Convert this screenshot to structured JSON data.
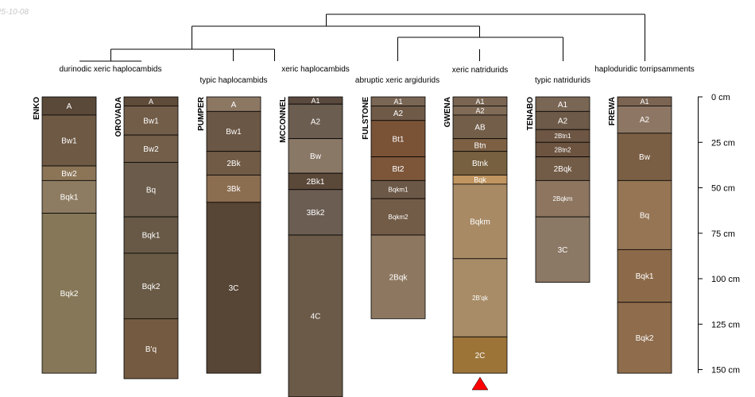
{
  "date_stamp": "25-10-08",
  "depth_axis": {
    "unit": "cm",
    "ticks": [
      {
        "depth": 0,
        "label": "0 cm"
      },
      {
        "depth": 25,
        "label": "25 cm"
      },
      {
        "depth": 50,
        "label": "50 cm"
      },
      {
        "depth": 75,
        "label": "75 cm"
      },
      {
        "depth": 100,
        "label": "100 cm"
      },
      {
        "depth": 125,
        "label": "125 cm"
      },
      {
        "depth": 150,
        "label": "150 cm"
      }
    ]
  },
  "taxa_labels": [
    "durinodic xeric haplocambids",
    "typic haplocambids",
    "xeric haplocambids",
    "abruptic xeric argidurids",
    "xeric natridurids",
    "typic natridurids",
    "haploduridic torripsamments"
  ],
  "profiles": [
    {
      "name": "ENKO",
      "horizons": [
        {
          "name": "A",
          "top": 0,
          "bottom": 10,
          "color": "#5a4938"
        },
        {
          "name": "Bw1",
          "top": 10,
          "bottom": 38,
          "color": "#6e5944"
        },
        {
          "name": "Bw2",
          "top": 38,
          "bottom": 46,
          "color": "#8c7557"
        },
        {
          "name": "Bqk1",
          "top": 46,
          "bottom": 64,
          "color": "#8e7c62"
        },
        {
          "name": "Bqk2",
          "top": 64,
          "bottom": 152,
          "color": "#857758"
        }
      ]
    },
    {
      "name": "OROVADA",
      "horizons": [
        {
          "name": "A",
          "top": 0,
          "bottom": 5,
          "color": "#5f4b3a"
        },
        {
          "name": "Bw1",
          "top": 5,
          "bottom": 21,
          "color": "#725d49"
        },
        {
          "name": "Bw2",
          "top": 21,
          "bottom": 36,
          "color": "#725e49"
        },
        {
          "name": "Bq",
          "top": 36,
          "bottom": 66,
          "color": "#6a5b4a"
        },
        {
          "name": "Bqk1",
          "top": 66,
          "bottom": 86,
          "color": "#675946"
        },
        {
          "name": "Bqk2",
          "top": 86,
          "bottom": 122,
          "color": "#695a46"
        },
        {
          "name": "B'q",
          "top": 122,
          "bottom": 155,
          "color": "#745a40"
        }
      ]
    },
    {
      "name": "PUMPER",
      "horizons": [
        {
          "name": "A",
          "top": 0,
          "bottom": 8,
          "color": "#8c7763"
        },
        {
          "name": "Bw1",
          "top": 8,
          "bottom": 30,
          "color": "#6b5745"
        },
        {
          "name": "2Bk",
          "top": 30,
          "bottom": 43,
          "color": "#715b46"
        },
        {
          "name": "3Bk",
          "top": 43,
          "bottom": 58,
          "color": "#8b6d50"
        },
        {
          "name": "3C",
          "top": 58,
          "bottom": 152,
          "color": "#574535"
        }
      ]
    },
    {
      "name": "MCCONNEL",
      "horizons": [
        {
          "name": "A1",
          "top": 0,
          "bottom": 4,
          "color": "#5a4a3e"
        },
        {
          "name": "A2",
          "top": 4,
          "bottom": 23,
          "color": "#6b5d50"
        },
        {
          "name": "Bw",
          "top": 23,
          "bottom": 42,
          "color": "#8a7867"
        },
        {
          "name": "2Bk1",
          "top": 42,
          "bottom": 51,
          "color": "#5a4838"
        },
        {
          "name": "3Bk2",
          "top": 51,
          "bottom": 76,
          "color": "#6b5d52"
        },
        {
          "name": "4C",
          "top": 76,
          "bottom": 165,
          "color": "#6b5a48"
        }
      ]
    },
    {
      "name": "FULSTONE",
      "horizons": [
        {
          "name": "A1",
          "top": 0,
          "bottom": 5,
          "color": "#7a6654"
        },
        {
          "name": "A2",
          "top": 5,
          "bottom": 13,
          "color": "#6f5a48"
        },
        {
          "name": "Bt1",
          "top": 13,
          "bottom": 33,
          "color": "#7a5236"
        },
        {
          "name": "Bt2",
          "top": 33,
          "bottom": 46,
          "color": "#7d563a"
        },
        {
          "name": "Bqkm1",
          "top": 46,
          "bottom": 56,
          "color": "#6c5846"
        },
        {
          "name": "Bqkm2",
          "top": 56,
          "bottom": 76,
          "color": "#735c47"
        },
        {
          "name": "2Bqk",
          "top": 76,
          "bottom": 122,
          "color": "#8e7760"
        }
      ]
    },
    {
      "name": "GWENA",
      "horizons": [
        {
          "name": "A1",
          "top": 0,
          "bottom": 5,
          "color": "#7a6552"
        },
        {
          "name": "A2",
          "top": 5,
          "bottom": 10,
          "color": "#806b57"
        },
        {
          "name": "AB",
          "top": 10,
          "bottom": 23,
          "color": "#735e49"
        },
        {
          "name": "Btn",
          "top": 23,
          "bottom": 30,
          "color": "#7d6044"
        },
        {
          "name": "Btnk",
          "top": 30,
          "bottom": 43,
          "color": "#76603f"
        },
        {
          "name": "Bqk",
          "top": 43,
          "bottom": 48,
          "color": "#c0955f"
        },
        {
          "name": "Bqkm",
          "top": 48,
          "bottom": 89,
          "color": "#a88a65"
        },
        {
          "name": "2B'qk",
          "top": 89,
          "bottom": 132,
          "color": "#a88c67"
        },
        {
          "name": "2C",
          "top": 132,
          "bottom": 152,
          "color": "#9c7438"
        }
      ]
    },
    {
      "name": "TENABO",
      "horizons": [
        {
          "name": "A1",
          "top": 0,
          "bottom": 8,
          "color": "#7a6654"
        },
        {
          "name": "A2",
          "top": 8,
          "bottom": 18,
          "color": "#6d5a48"
        },
        {
          "name": "2Btn1",
          "top": 18,
          "bottom": 25,
          "color": "#6d5643"
        },
        {
          "name": "2Btn2",
          "top": 25,
          "bottom": 33,
          "color": "#6c5441"
        },
        {
          "name": "2Bqk",
          "top": 33,
          "bottom": 46,
          "color": "#725c47"
        },
        {
          "name": "2Bqkm",
          "top": 46,
          "bottom": 66,
          "color": "#8d7560"
        },
        {
          "name": "3C",
          "top": 66,
          "bottom": 102,
          "color": "#8b7865"
        }
      ]
    },
    {
      "name": "FREWA",
      "horizons": [
        {
          "name": "A1",
          "top": 0,
          "bottom": 5,
          "color": "#7b6452"
        },
        {
          "name": "A2",
          "top": 5,
          "bottom": 20,
          "color": "#8d7764"
        },
        {
          "name": "Bw",
          "top": 20,
          "bottom": 46,
          "color": "#7a5f44"
        },
        {
          "name": "Bq",
          "top": 46,
          "bottom": 84,
          "color": "#957554"
        },
        {
          "name": "Bqk1",
          "top": 84,
          "bottom": 113,
          "color": "#8c6a49"
        },
        {
          "name": "Bqk2",
          "top": 113,
          "bottom": 152,
          "color": "#8e6c4c"
        }
      ]
    }
  ]
}
